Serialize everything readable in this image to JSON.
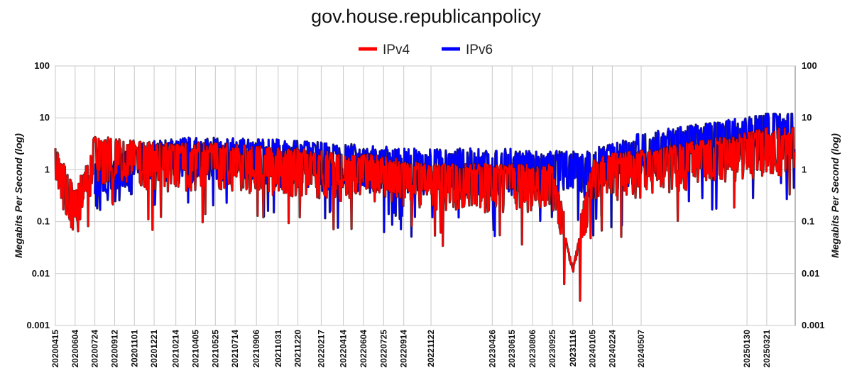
{
  "chart_data": {
    "type": "line",
    "title": "gov.house.republicanpolicy",
    "ylabel": "Megabits Per Second (log)",
    "y_scale": "log",
    "ylim": [
      0.001,
      100
    ],
    "y_ticks": [
      "100",
      "10",
      "1",
      "0.1",
      "0.01",
      "0.001"
    ],
    "x_ticks": [
      "20200415",
      "20200604",
      "20200724",
      "20200912",
      "20201101",
      "20201221",
      "20210214",
      "20210405",
      "20210525",
      "20210714",
      "20210906",
      "20211031",
      "20211220",
      "20220217",
      "20220414",
      "20220604",
      "20220725",
      "20220914",
      "20221122",
      "20230426",
      "20230615",
      "20230806",
      "20230925",
      "20231116",
      "20240105",
      "20240224",
      "20240507",
      "20250130",
      "20250321"
    ],
    "grid": true,
    "legend_position": "top-center",
    "series": [
      {
        "name": "IPv4",
        "color": "#ff0000",
        "approx_values": [
          {
            "x": "20200415",
            "y": 1.3
          },
          {
            "x": "20200604",
            "y": 0.15
          },
          {
            "x": "20200724",
            "y": 1.8
          },
          {
            "x": "20200912",
            "y": 1.6
          },
          {
            "x": "20201101",
            "y": 1.4
          },
          {
            "x": "20201221",
            "y": 1.3
          },
          {
            "x": "20210214",
            "y": 1.2
          },
          {
            "x": "20210405",
            "y": 1.3
          },
          {
            "x": "20210525",
            "y": 1.3
          },
          {
            "x": "20210714",
            "y": 1.2
          },
          {
            "x": "20210906",
            "y": 1.1
          },
          {
            "x": "20211031",
            "y": 1.0
          },
          {
            "x": "20211220",
            "y": 1.0
          },
          {
            "x": "20220217",
            "y": 0.9
          },
          {
            "x": "20220414",
            "y": 0.8
          },
          {
            "x": "20220604",
            "y": 0.8
          },
          {
            "x": "20220725",
            "y": 0.7
          },
          {
            "x": "20220914",
            "y": 0.6
          },
          {
            "x": "20221122",
            "y": 0.5
          },
          {
            "x": "20230426",
            "y": 0.5
          },
          {
            "x": "20230615",
            "y": 0.5
          },
          {
            "x": "20230806",
            "y": 0.5
          },
          {
            "x": "20230925",
            "y": 0.5
          },
          {
            "x": "20231116",
            "y": 0.011
          },
          {
            "x": "20240105",
            "y": 0.6
          },
          {
            "x": "20240224",
            "y": 0.8
          },
          {
            "x": "20240507",
            "y": 0.9
          },
          {
            "x": "20250130",
            "y": 2.0
          },
          {
            "x": "20250321",
            "y": 2.5
          }
        ]
      },
      {
        "name": "IPv6",
        "color": "#0000ff",
        "approx_values": [
          {
            "x": "20200724",
            "y": 0.5
          },
          {
            "x": "20200912",
            "y": 0.6
          },
          {
            "x": "20201101",
            "y": 1.2
          },
          {
            "x": "20201221",
            "y": 1.5
          },
          {
            "x": "20210214",
            "y": 1.6
          },
          {
            "x": "20210405",
            "y": 1.6
          },
          {
            "x": "20210525",
            "y": 1.6
          },
          {
            "x": "20210714",
            "y": 1.6
          },
          {
            "x": "20210906",
            "y": 1.5
          },
          {
            "x": "20211031",
            "y": 1.5
          },
          {
            "x": "20211220",
            "y": 1.4
          },
          {
            "x": "20220217",
            "y": 1.3
          },
          {
            "x": "20220414",
            "y": 1.2
          },
          {
            "x": "20220604",
            "y": 1.2
          },
          {
            "x": "20220725",
            "y": 1.1
          },
          {
            "x": "20220914",
            "y": 1.0
          },
          {
            "x": "20221122",
            "y": 1.0
          },
          {
            "x": "20230426",
            "y": 1.0
          },
          {
            "x": "20230615",
            "y": 1.0
          },
          {
            "x": "20230806",
            "y": 0.9
          },
          {
            "x": "20230925",
            "y": 0.9
          },
          {
            "x": "20231116",
            "y": 0.9
          },
          {
            "x": "20240105",
            "y": 1.0
          },
          {
            "x": "20240224",
            "y": 1.2
          },
          {
            "x": "20240507",
            "y": 2.0
          },
          {
            "x": "20250130",
            "y": 4.0
          },
          {
            "x": "20250321",
            "y": 5.0
          }
        ]
      }
    ]
  }
}
